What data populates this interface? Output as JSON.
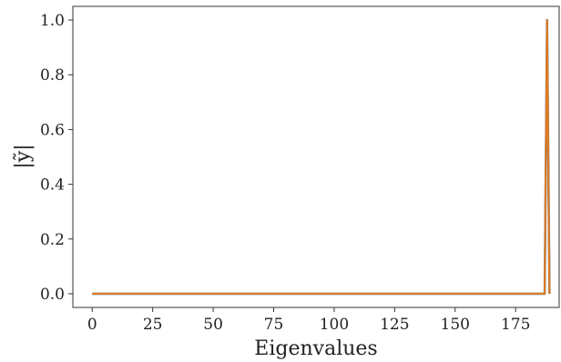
{
  "chart_data": {
    "type": "line",
    "title": "",
    "xlabel": "Eigenvalues",
    "ylabel": "|ỹ|",
    "xlim": [
      -8,
      193
    ],
    "ylim": [
      -0.05,
      1.05
    ],
    "xticks": [
      0,
      25,
      50,
      75,
      100,
      125,
      150,
      175
    ],
    "xtick_labels": [
      "0",
      "25",
      "50",
      "75",
      "100",
      "125",
      "150",
      "175"
    ],
    "yticks": [
      0.0,
      0.2,
      0.4,
      0.6,
      0.8,
      1.0
    ],
    "ytick_labels": [
      "0.0",
      "0.2",
      "0.4",
      "0.6",
      "0.8",
      "1.0"
    ],
    "grid": false,
    "legend": "none",
    "series": [
      {
        "color": "#1f77b4",
        "x": [
          0,
          187,
          188,
          189
        ],
        "y": [
          0.0,
          0.0,
          1.0,
          0.0
        ]
      },
      {
        "color": "#e07b24",
        "x": [
          0,
          187,
          188,
          189
        ],
        "y": [
          0.0,
          0.0,
          1.0,
          0.0
        ]
      }
    ]
  }
}
